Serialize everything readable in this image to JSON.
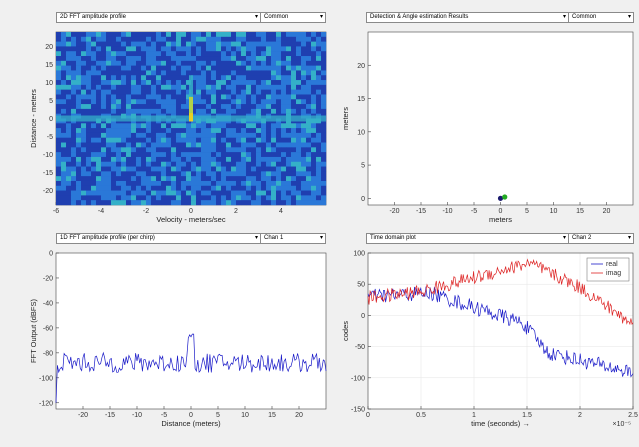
{
  "panels": {
    "top_left": {
      "dropdown": "2D FFT amplitude profile",
      "mode": "Common",
      "chart_data": {
        "type": "heatmap",
        "xlabel": "Velocity - meters/sec",
        "ylabel": "Distance - meters",
        "xlim": [
          -6,
          6
        ],
        "ylim": [
          -24,
          24
        ],
        "x_ticks": [
          "-6",
          "-4",
          "-2",
          "0",
          "2",
          "4"
        ],
        "y_ticks": [
          "20",
          "15",
          "10",
          "5",
          "0",
          "-5",
          "-10",
          "-15",
          "-20"
        ],
        "colormap": [
          "#1f3fb0",
          "#2a78d8",
          "#34b0c8",
          "#c8d832",
          "#f0d020"
        ]
      }
    },
    "top_right": {
      "dropdown": "Detection & Angle estimation Results",
      "mode": "Common",
      "chart_data": {
        "type": "scatter",
        "xlabel": "meters",
        "ylabel": "meters",
        "xlim": [
          -25,
          25
        ],
        "ylim": [
          -1,
          25
        ],
        "x_ticks": [
          "-20",
          "-15",
          "-10",
          "-5",
          "0",
          "5",
          "10",
          "15",
          "20"
        ],
        "y_ticks": [
          "20",
          "15",
          "10",
          "5",
          "0"
        ],
        "points": [
          {
            "x": 0,
            "y": 0,
            "color": "#1a1a6e"
          },
          {
            "x": 0.8,
            "y": 0.2,
            "color": "#22aa22"
          }
        ]
      }
    },
    "bottom_left": {
      "dropdown": "1D FFT amplitude profile (per chirp)",
      "mode": "Chan 1",
      "chart_data": {
        "type": "line",
        "xlabel": "Distance (meters)",
        "ylabel": "FFT Output (dBFS)",
        "xlim": [
          -25,
          25
        ],
        "ylim": [
          -125,
          0
        ],
        "x_ticks": [
          "-20",
          "-15",
          "-10",
          "-5",
          "0",
          "5",
          "10",
          "15",
          "20"
        ],
        "y_ticks": [
          "0",
          "-20",
          "-40",
          "-60",
          "-80",
          "-100",
          "-120"
        ],
        "series": [
          {
            "color": "#1a1ac8"
          }
        ]
      }
    },
    "bottom_right": {
      "dropdown": "Time domain plot",
      "mode": "Chan 2",
      "chart_data": {
        "type": "line",
        "xlabel": "time (seconds) →",
        "ylabel": "codes",
        "x_exponent": "×10⁻⁵",
        "xlim": [
          0,
          2.5
        ],
        "ylim": [
          -150,
          100
        ],
        "x_ticks": [
          "0",
          "0.5",
          "1",
          "1.5",
          "2",
          "2.5"
        ],
        "y_ticks": [
          "100",
          "50",
          "0",
          "-50",
          "-100",
          "-150"
        ],
        "legend_position": "top-right",
        "series": [
          {
            "name": "real",
            "color": "#1a1ac8"
          },
          {
            "name": "imag",
            "color": "#dd2222"
          }
        ]
      }
    }
  },
  "icons": {
    "dropdown_arrow": "▾"
  }
}
